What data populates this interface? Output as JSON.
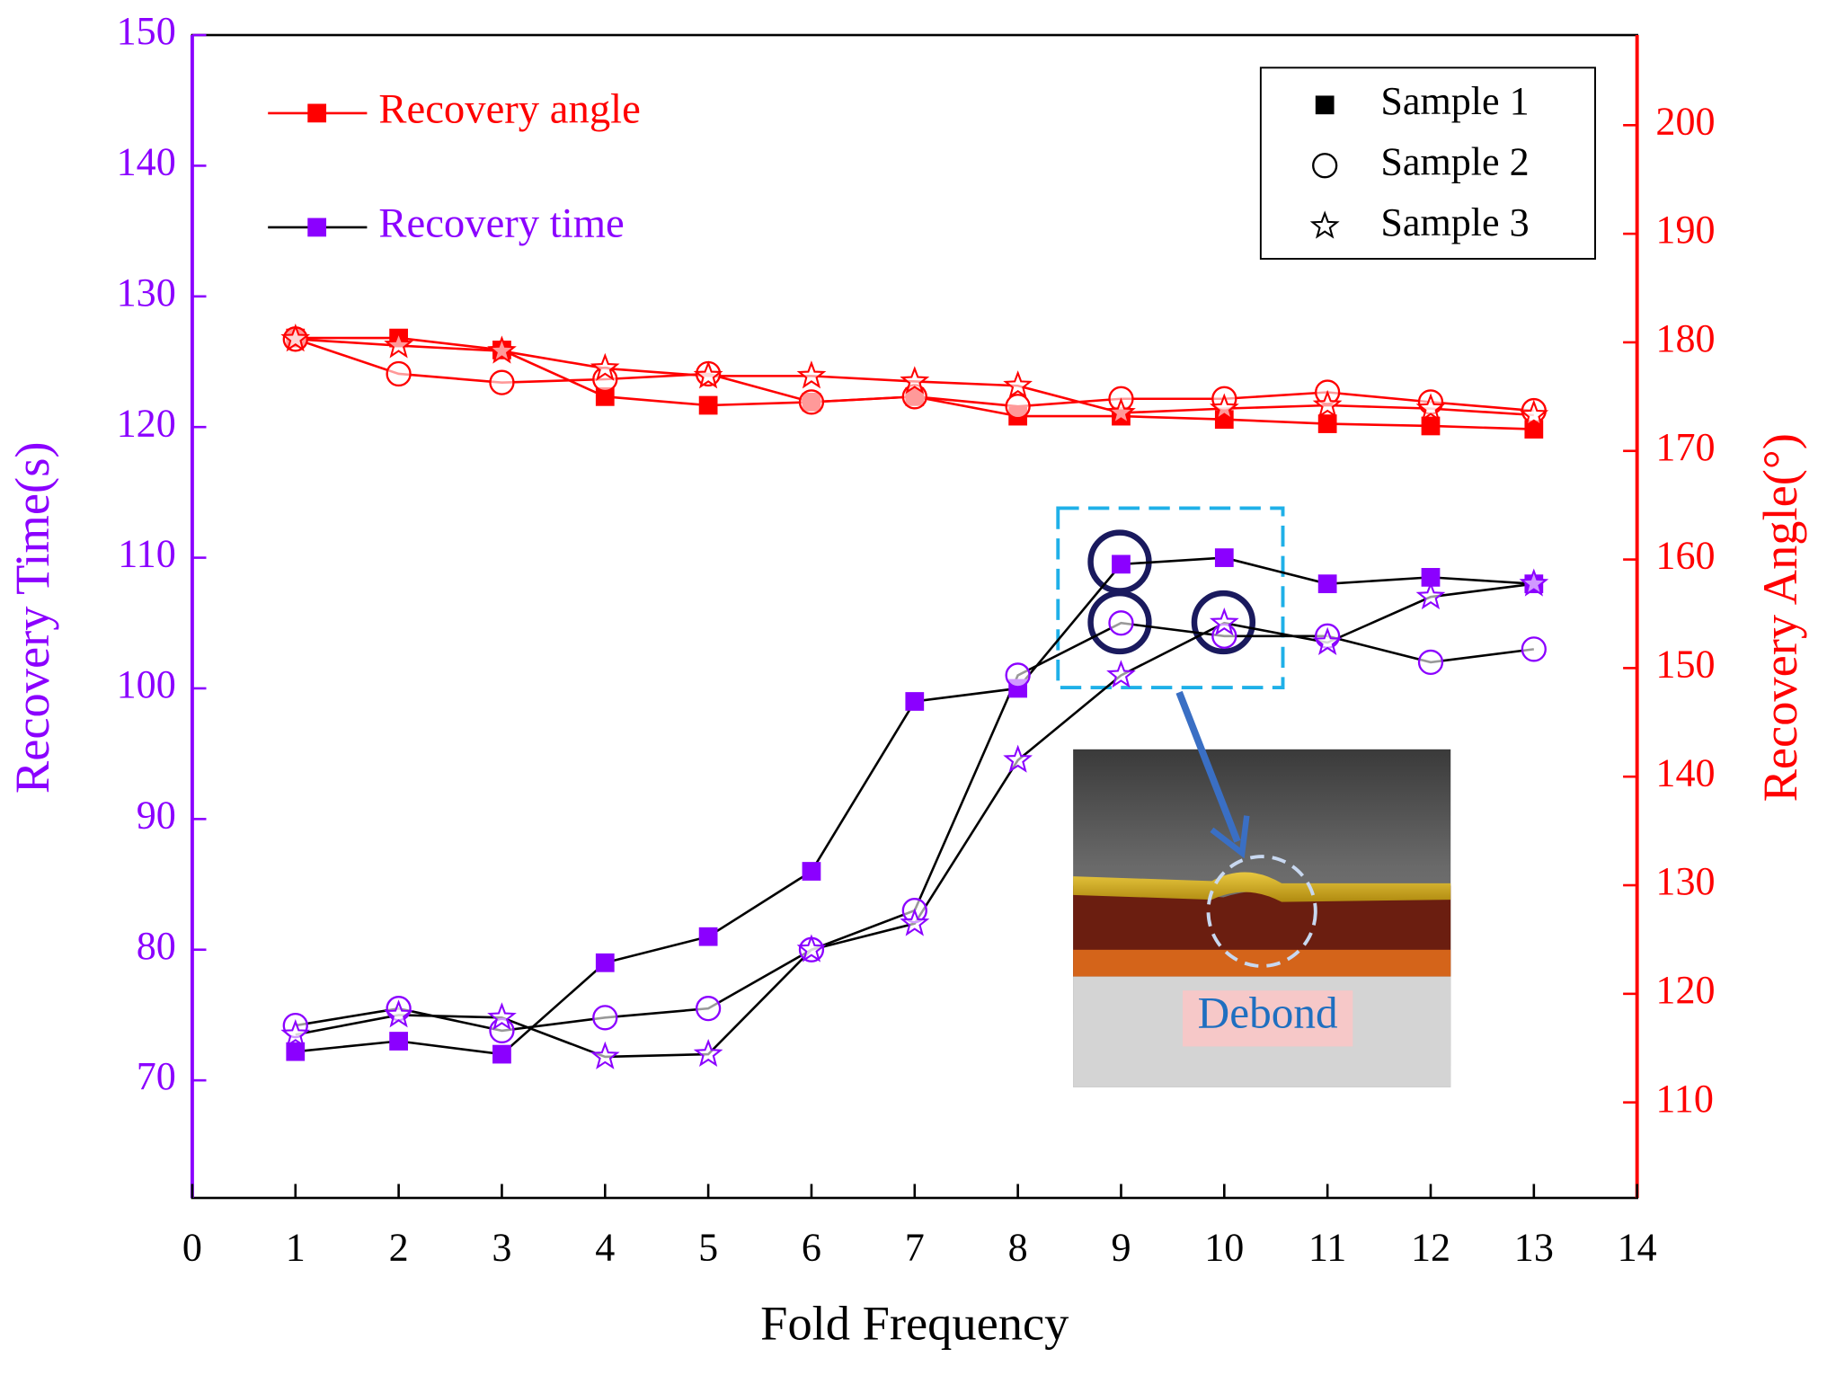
{
  "chart_data": {
    "type": "line",
    "x_label": "Fold Frequency",
    "y_label": "Recovery Time(s)",
    "y2_label": "Recovery Angle(°)",
    "x": [
      1,
      2,
      3,
      4,
      5,
      6,
      7,
      8,
      9,
      10,
      11,
      12,
      13
    ],
    "xlim": [
      0,
      14
    ],
    "xticks": [
      0,
      1,
      2,
      3,
      4,
      5,
      6,
      7,
      8,
      9,
      10,
      11,
      12,
      13,
      14
    ],
    "ylim": [
      61,
      150
    ],
    "yticks": [
      70,
      80,
      90,
      100,
      110,
      120,
      130,
      140,
      150
    ],
    "y2lim": [
      101.2,
      208.3
    ],
    "y2ticks": [
      110,
      120,
      130,
      140,
      150,
      160,
      170,
      180,
      190,
      200
    ],
    "samples": [
      "Sample 1",
      "Sample 2",
      "Sample 3"
    ],
    "series": [
      {
        "name": "Recovery angle",
        "axis": "y2",
        "color": "#ff0000",
        "line_color": "#ff0000",
        "values": [
          [
            180.4,
            180.4,
            179.3,
            175.0,
            174.2,
            174.5,
            175.0,
            173.2,
            173.2,
            172.9,
            172.5,
            172.3,
            172.0
          ],
          [
            180.3,
            177.1,
            176.3,
            176.6,
            177.1,
            174.5,
            175.0,
            174.1,
            174.8,
            174.8,
            175.4,
            174.5,
            173.7
          ],
          [
            180.3,
            179.7,
            179.2,
            177.6,
            176.9,
            176.9,
            176.4,
            176.0,
            173.5,
            173.9,
            174.2,
            173.9,
            173.3
          ]
        ]
      },
      {
        "name": "Recovery time",
        "axis": "y",
        "color": "#8b00ff",
        "line_color": "#000000",
        "values": [
          [
            72.2,
            73,
            72,
            79,
            81,
            86,
            99,
            100,
            109.5,
            110,
            108,
            108.5,
            108
          ],
          [
            74.2,
            75.5,
            73.8,
            74.8,
            75.5,
            80,
            83,
            101,
            105,
            104,
            104,
            102,
            103
          ],
          [
            73.5,
            75,
            74.8,
            71.8,
            72,
            80,
            82,
            94.5,
            101,
            105,
            103.5,
            107,
            108
          ]
        ]
      }
    ],
    "annotation": "Debond"
  }
}
